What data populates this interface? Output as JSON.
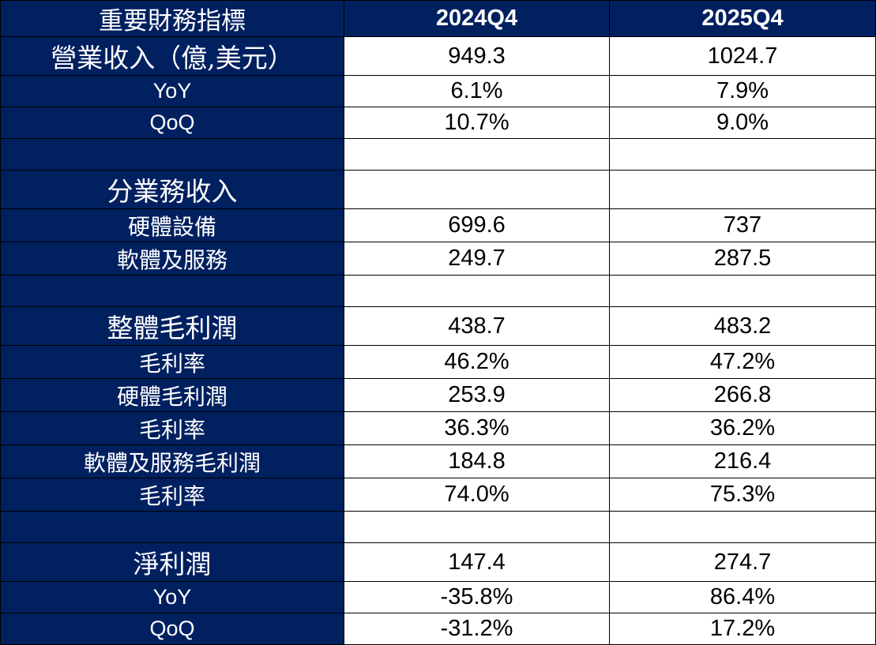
{
  "table": {
    "title": "重要財務指標",
    "columns": [
      "2024Q4",
      "2025Q4"
    ],
    "colors": {
      "header_bg": "#002060",
      "header_text": "#ffffff",
      "cell_bg": "#ffffff",
      "border": "#000000"
    },
    "rows": [
      {
        "label": "營業收入（億,美元）",
        "v1": "949.3",
        "v2": "1024.7"
      },
      {
        "label": "YoY",
        "v1": "6.1%",
        "v2": "7.9%"
      },
      {
        "label": "QoQ",
        "v1": "10.7%",
        "v2": "9.0%"
      },
      {
        "label": "",
        "v1": "",
        "v2": ""
      },
      {
        "label": "分業務收入",
        "v1": "",
        "v2": ""
      },
      {
        "label": "硬體設備",
        "v1": "699.6",
        "v2": "737"
      },
      {
        "label": "軟體及服務",
        "v1": "249.7",
        "v2": "287.5"
      },
      {
        "label": "",
        "v1": "",
        "v2": ""
      },
      {
        "label": "整體毛利潤",
        "v1": "438.7",
        "v2": "483.2"
      },
      {
        "label": "毛利率",
        "v1": "46.2%",
        "v2": "47.2%"
      },
      {
        "label": "硬體毛利潤",
        "v1": "253.9",
        "v2": "266.8"
      },
      {
        "label": "毛利率",
        "v1": "36.3%",
        "v2": "36.2%"
      },
      {
        "label": "軟體及服務毛利潤",
        "v1": "184.8",
        "v2": "216.4"
      },
      {
        "label": "毛利率",
        "v1": "74.0%",
        "v2": "75.3%"
      },
      {
        "label": "",
        "v1": "",
        "v2": ""
      },
      {
        "label": "淨利潤",
        "v1": "147.4",
        "v2": "274.7"
      },
      {
        "label": "YoY",
        "v1": "-35.8%",
        "v2": "86.4%"
      },
      {
        "label": "QoQ",
        "v1": "-31.2%",
        "v2": "17.2%"
      }
    ]
  }
}
